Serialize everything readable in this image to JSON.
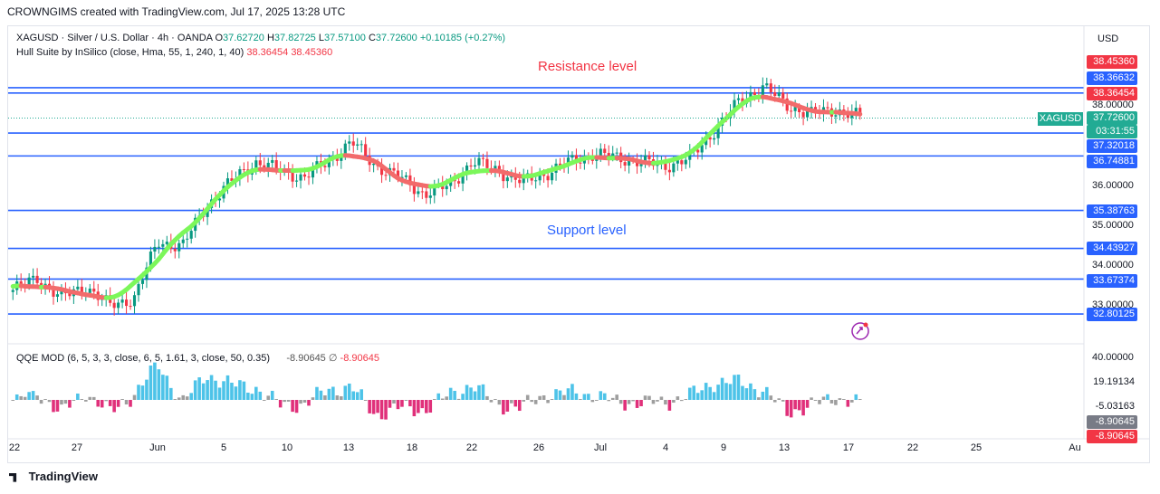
{
  "header": "CROWNGIMS created with TradingView.com, Jul 17, 2025 13:28 UTC",
  "symbol_line": {
    "name": "XAGUSD · Silver / U.S. Dollar · 4h · OANDA",
    "o_label": "O",
    "o": "37.62720",
    "h_label": "H",
    "h": "37.82725",
    "l_label": "L",
    "l": "37.57100",
    "c_label": "C",
    "c": "37.72600",
    "change": "+0.10185 (+0.27%)"
  },
  "hull_line": {
    "name": "Hull Suite by InSilico (close, Hma, 55, 1, 240, 1, 40)",
    "v1": "38.36454",
    "v2": "38.45360"
  },
  "qqe_line": {
    "name": "QQE MOD (6, 5, 3, 3, close, 6, 5, 1.61, 3, close, 50, 0.35)",
    "v1": "-8.90645",
    "sym": "∅",
    "v2": "-8.90645"
  },
  "currency": "USD",
  "symbol_tag": "XAGUSD",
  "annotations": {
    "resistance": "Resistance level",
    "support": "Support level"
  },
  "price_axis": [
    "38.00000",
    "36.00000",
    "35.00000",
    "34.00000",
    "33.00000"
  ],
  "price_tags": [
    {
      "text": "38.45360",
      "style": "red",
      "y": 38.4536
    },
    {
      "text": "38.36632",
      "style": "blue",
      "y": 38.36632
    },
    {
      "text": "38.36454",
      "style": "red",
      "y": 38.36454
    },
    {
      "text": "37.72600",
      "style": "teal",
      "y": 37.726
    },
    {
      "text": "03:31:55",
      "style": "teal",
      "y": 37.726
    },
    {
      "text": "37.32018",
      "style": "blue",
      "y": 37.32018
    },
    {
      "text": "36.74881",
      "style": "blue",
      "y": 36.74881
    },
    {
      "text": "35.38763",
      "style": "blue",
      "y": 35.38763
    },
    {
      "text": "34.43927",
      "style": "blue",
      "y": 34.43927
    },
    {
      "text": "33.67374",
      "style": "blue",
      "y": 33.67374
    },
    {
      "text": "32.80125",
      "style": "blue",
      "y": 32.80125
    }
  ],
  "qqe_axis": [
    "40.00000"
  ],
  "qqe_tags": [
    {
      "text": "19.19134",
      "style": "white"
    },
    {
      "text": "-5.03163",
      "style": "white"
    },
    {
      "text": "-8.90645",
      "style": "gray"
    },
    {
      "text": "-8.90645",
      "style": "red"
    }
  ],
  "x_axis": [
    "22",
    "27",
    "Jun",
    "5",
    "10",
    "13",
    "18",
    "22",
    "26",
    "Jul",
    "4",
    "9",
    "13",
    "17",
    "22",
    "25",
    "Au"
  ],
  "logo": "TradingView",
  "chart_data": {
    "type": "candlestick",
    "timeframe": "4h",
    "ylim": [
      32.6,
      38.8
    ],
    "horizontal_levels": [
      38.4536,
      38.36632,
      37.32018,
      36.74881,
      35.38763,
      34.43927,
      33.67374,
      32.80125
    ],
    "close_path": [
      [
        "22",
        33.4
      ],
      [
        "24",
        33.7
      ],
      [
        "27",
        33.2
      ],
      [
        "28",
        33.5
      ],
      [
        "30",
        33.0
      ],
      [
        "Jun",
        33.2
      ],
      [
        "3",
        34.6
      ],
      [
        "4",
        34.5
      ],
      [
        "5",
        35.5
      ],
      [
        "6",
        36.1
      ],
      [
        "9",
        36.6
      ],
      [
        "10",
        36.4
      ],
      [
        "12",
        36.2
      ],
      [
        "16",
        36.6
      ],
      [
        "18",
        37.1
      ],
      [
        "19",
        36.5
      ],
      [
        "22",
        36.2
      ],
      [
        "24",
        35.8
      ],
      [
        "25",
        36.0
      ],
      [
        "26",
        36.6
      ],
      [
        "27",
        36.4
      ],
      [
        "30",
        36.1
      ],
      [
        "Jul 1",
        36.3
      ],
      [
        "2",
        36.6
      ],
      [
        "4",
        36.8
      ],
      [
        "6",
        36.7
      ],
      [
        "8",
        36.6
      ],
      [
        "9",
        36.5
      ],
      [
        "10",
        36.7
      ],
      [
        "11",
        37.4
      ],
      [
        "12",
        38.1
      ],
      [
        "13",
        38.5
      ],
      [
        "14",
        38.0
      ],
      [
        "15",
        37.8
      ],
      [
        "16",
        37.9
      ],
      [
        "17",
        37.73
      ]
    ],
    "qqe_histogram_trend": [
      "positive",
      "negative",
      "positive",
      "negative",
      "positive",
      "negative",
      "positive",
      "negative",
      "positive",
      "negative",
      "positive",
      "negative"
    ]
  }
}
